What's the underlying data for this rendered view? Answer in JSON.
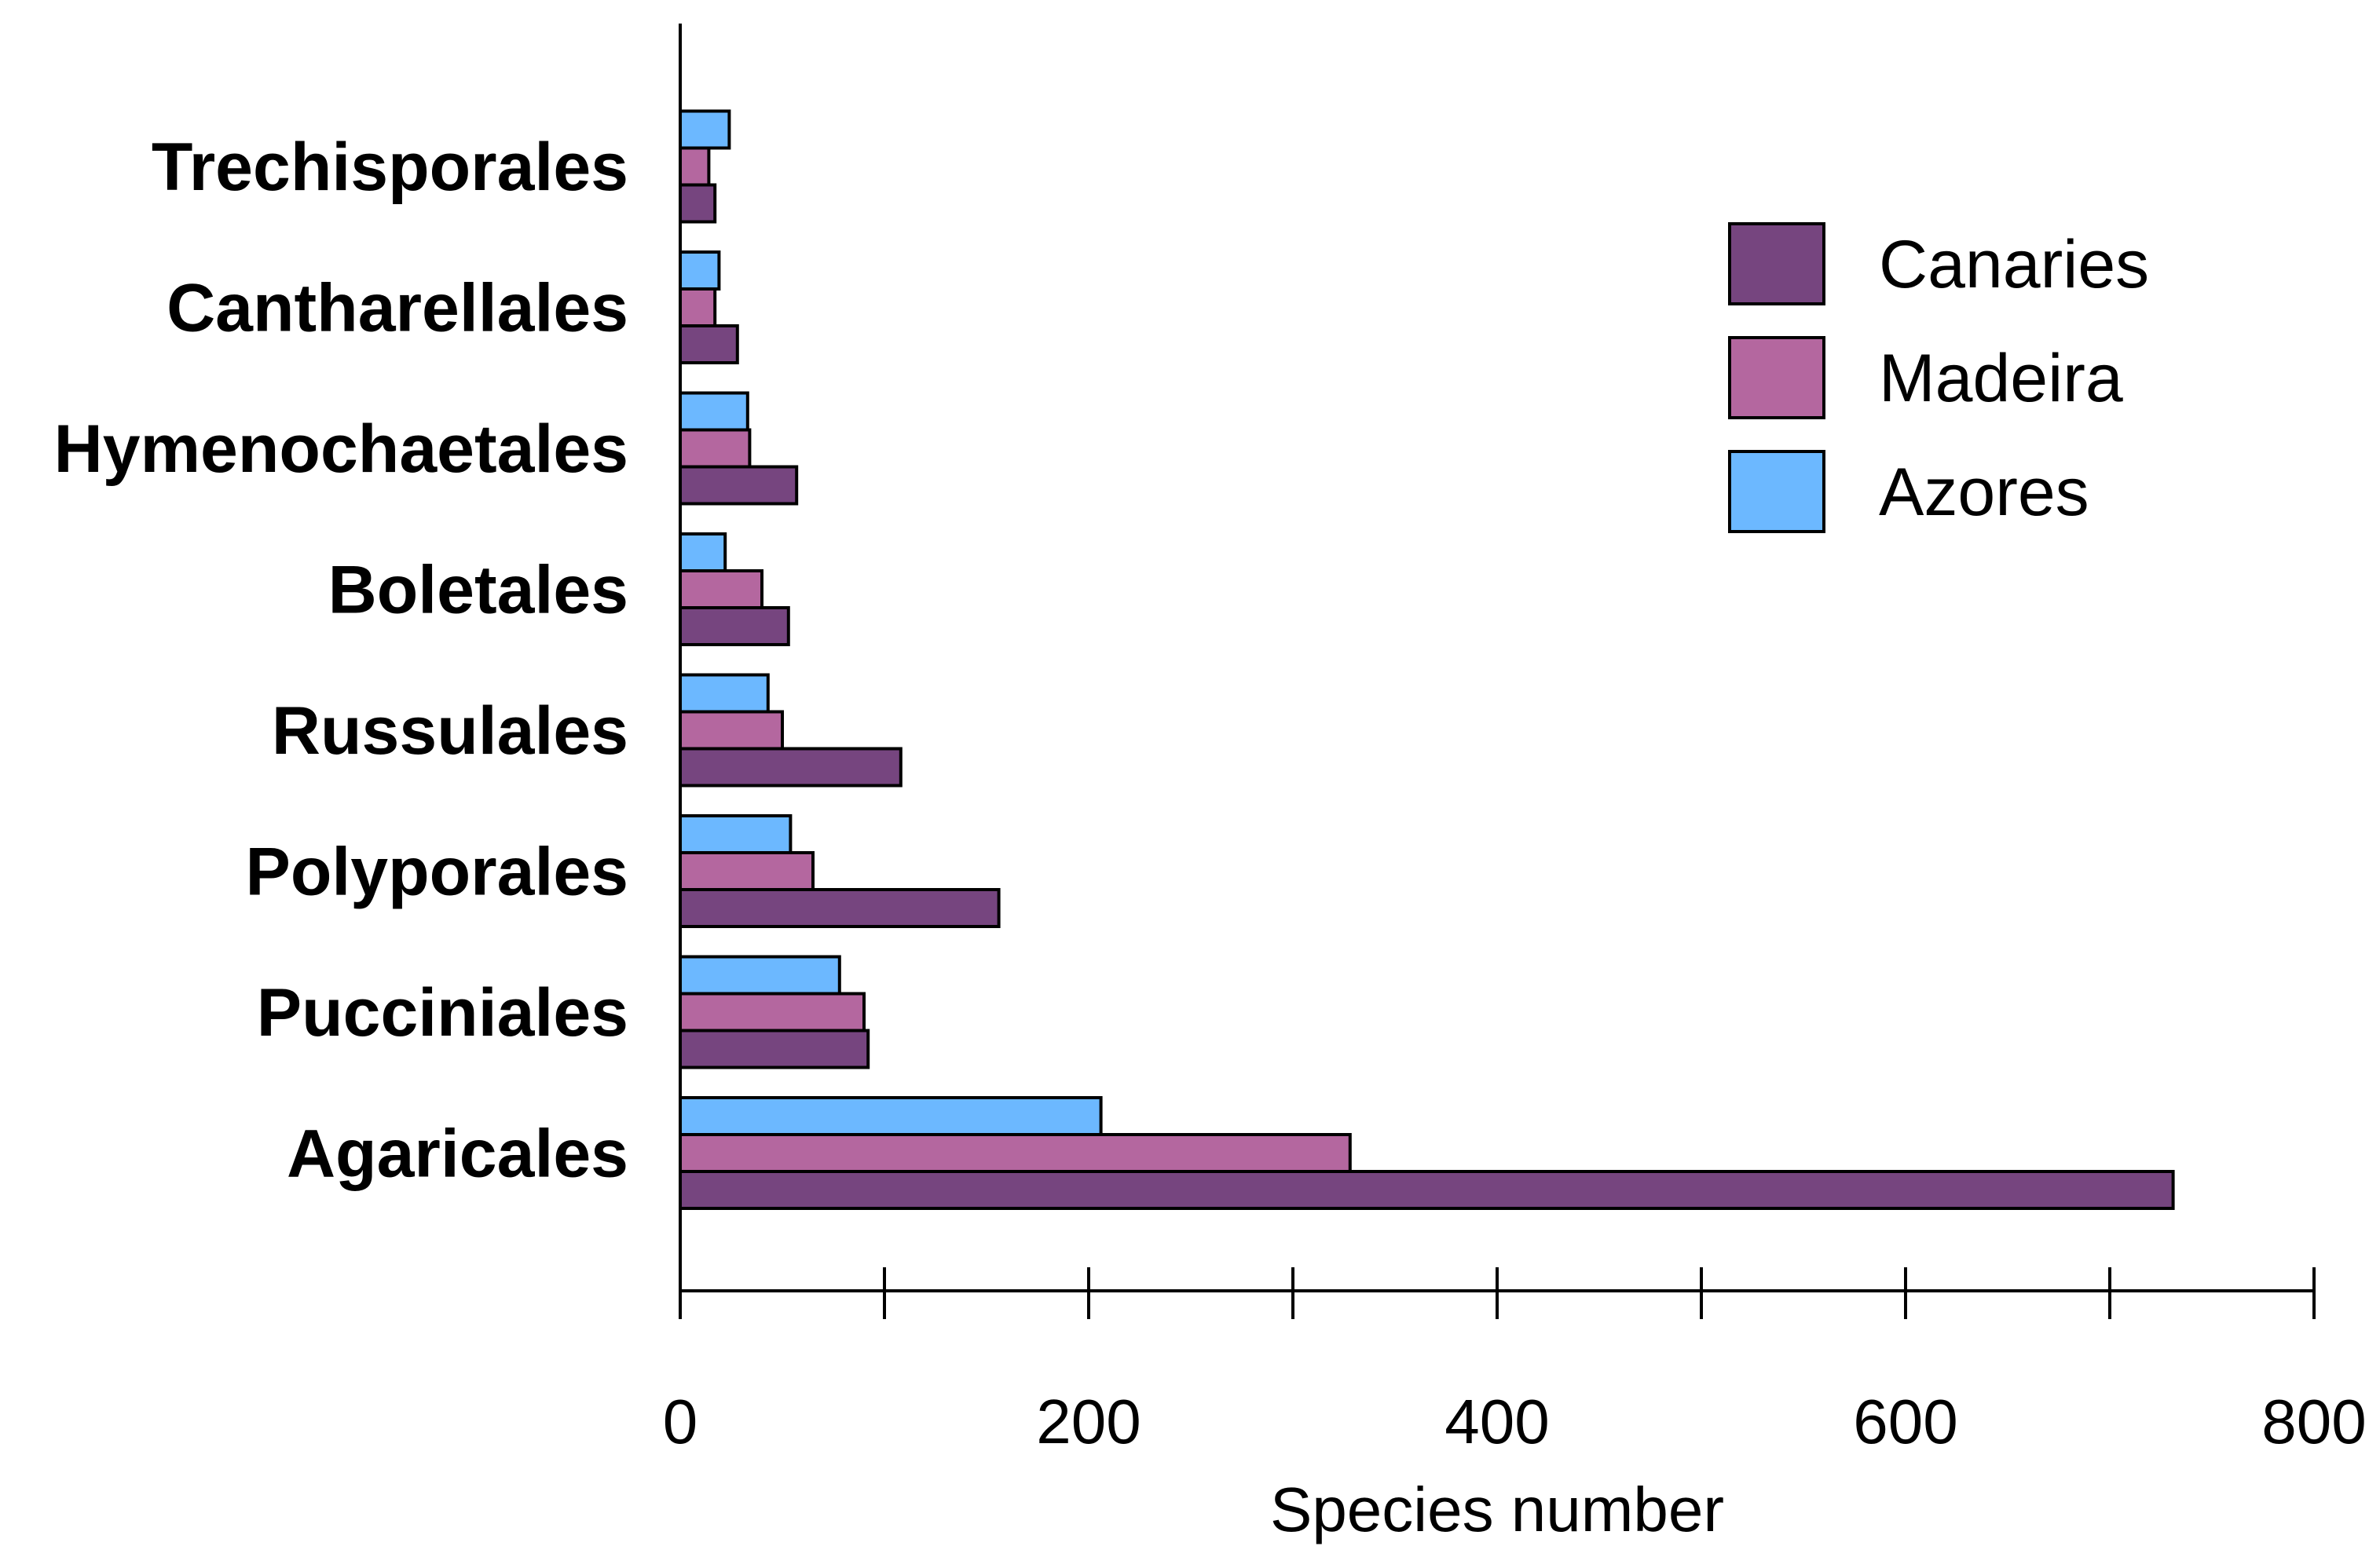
{
  "chart_data": {
    "type": "bar",
    "orientation": "horizontal",
    "title": "",
    "xlabel": "Species number",
    "ylabel": "",
    "xlim": [
      0,
      800
    ],
    "xticks": [
      0,
      200,
      400,
      600,
      800
    ],
    "categories": [
      "Trechisporales",
      "Cantharellales",
      "Hymenochaetales",
      "Boletales",
      "Russulales",
      "Polyporales",
      "Pucciniales",
      "Agaricales"
    ],
    "series": [
      {
        "name": "Azores",
        "color": "#6cb8ff",
        "values": [
          24,
          19,
          33,
          22,
          43,
          54,
          78,
          206
        ]
      },
      {
        "name": "Madeira",
        "color": "#b4679f",
        "values": [
          14,
          17,
          34,
          40,
          50,
          65,
          90,
          328
        ]
      },
      {
        "name": "Canaries",
        "color": "#76457f",
        "values": [
          17,
          28,
          57,
          53,
          108,
          156,
          92,
          731
        ]
      }
    ],
    "legend": {
      "position": "top-right",
      "order": [
        "Canaries",
        "Madeira",
        "Azores"
      ]
    }
  }
}
